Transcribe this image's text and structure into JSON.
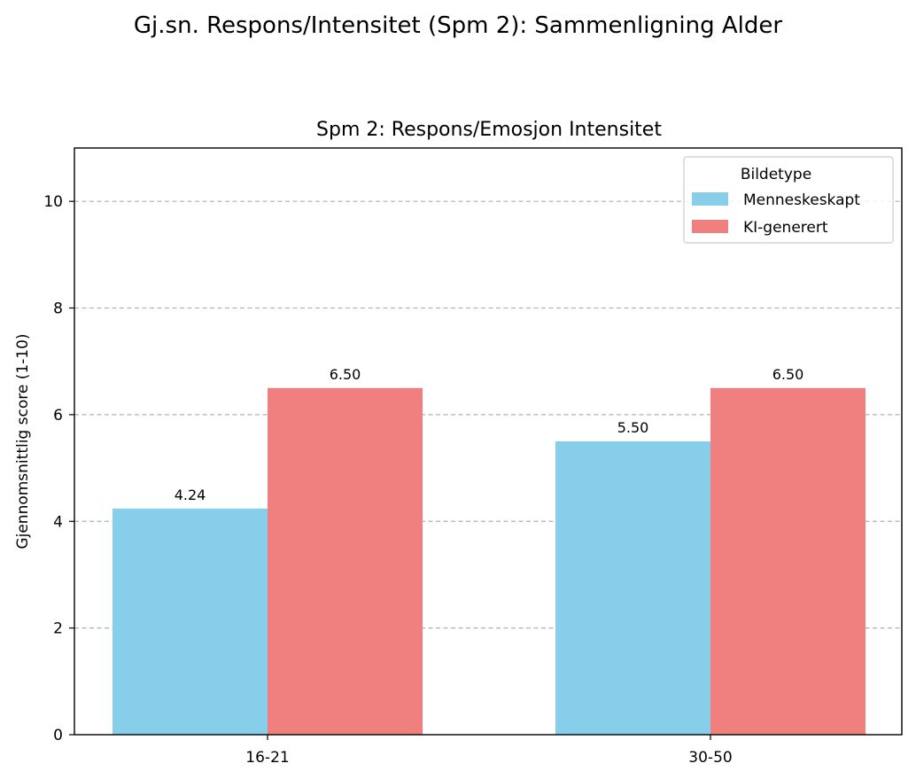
{
  "suptitle": "Gj.sn. Respons/Intensitet (Spm 2): Sammenligning Alder",
  "chart_data": {
    "type": "bar",
    "title": "Spm 2: Respons/Emosjon Intensitet",
    "xlabel": "",
    "ylabel": "Gjennomsnittlig score (1-10)",
    "categories": [
      "16-21",
      "30-50"
    ],
    "series": [
      {
        "name": "Menneskeskapt",
        "values": [
          4.24,
          5.5
        ],
        "labels": [
          "4.24",
          "5.50"
        ],
        "color": "#87ceeb"
      },
      {
        "name": "KI-generert",
        "values": [
          6.5,
          6.5
        ],
        "labels": [
          "6.50",
          "6.50"
        ],
        "color": "#f08080"
      }
    ],
    "ylim": [
      0,
      11
    ],
    "yticks": [
      0,
      2,
      4,
      6,
      8,
      10
    ],
    "ytick_labels": [
      "0",
      "2",
      "4",
      "6",
      "8",
      "10"
    ],
    "grid": "y-dashed",
    "legend": {
      "title": "Bildetype",
      "placement": "upper right"
    }
  }
}
